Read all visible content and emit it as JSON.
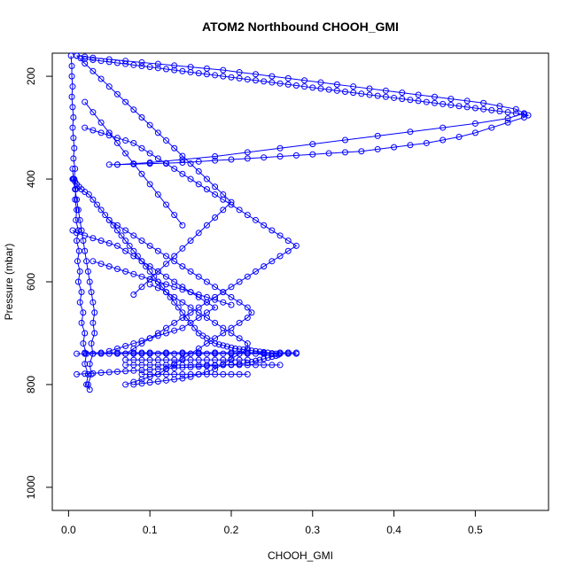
{
  "chart_data": {
    "type": "scatter",
    "title": "ATOM2 Northbound CHOOH_GMI",
    "xlabel": "CHOOH_GMI",
    "ylabel": "Pressure (mbar)",
    "xlim": [
      -0.02,
      0.59
    ],
    "ylim": [
      1045,
      155
    ],
    "y_reversed": true,
    "grid": false,
    "marker": "open-circle",
    "series_color": "#0000ff",
    "x_ticks": [
      0.0,
      0.1,
      0.2,
      0.3,
      0.4,
      0.5
    ],
    "x_tick_labels": [
      "0.0",
      "0.1",
      "0.2",
      "0.3",
      "0.4",
      "0.5"
    ],
    "y_ticks": [
      200,
      400,
      600,
      800,
      1000
    ],
    "y_tick_labels": [
      "200",
      "400",
      "600",
      "800",
      "1000"
    ],
    "series": [
      {
        "x": [
          0.003,
          0.004,
          0.004,
          0.005,
          0.004,
          0.005,
          0.006,
          0.005,
          0.006,
          0.007,
          0.006,
          0.008,
          0.007,
          0.009,
          0.008,
          0.01,
          0.009,
          0.012,
          0.01,
          0.013,
          0.011,
          0.014,
          0.012,
          0.016,
          0.014,
          0.018,
          0.016,
          0.02,
          0.018,
          0.022,
          0.02,
          0.024,
          0.022,
          0.026,
          0.024,
          0.028,
          0.026,
          0.03,
          0.028,
          0.032,
          0.03,
          0.032,
          0.03,
          0.028,
          0.026,
          0.024,
          0.022,
          0.02,
          0.018,
          0.016,
          0.014,
          0.012,
          0.01,
          0.008,
          0.006,
          0.005
        ],
        "y": [
          160,
          180,
          200,
          220,
          240,
          260,
          280,
          300,
          320,
          340,
          360,
          380,
          400,
          420,
          440,
          460,
          480,
          500,
          520,
          540,
          560,
          580,
          600,
          620,
          640,
          660,
          680,
          700,
          720,
          740,
          760,
          780,
          800,
          810,
          800,
          780,
          760,
          740,
          720,
          700,
          680,
          660,
          640,
          620,
          600,
          580,
          560,
          540,
          520,
          500,
          480,
          460,
          440,
          420,
          400,
          380
        ]
      },
      {
        "x": [
          0.015,
          0.02,
          0.03,
          0.04,
          0.05,
          0.06,
          0.07,
          0.08,
          0.09,
          0.1,
          0.11,
          0.12,
          0.13,
          0.14,
          0.15,
          0.16,
          0.17,
          0.18,
          0.19,
          0.2,
          0.21,
          0.22,
          0.23,
          0.24,
          0.25,
          0.26,
          0.27,
          0.28,
          0.29,
          0.3,
          0.31,
          0.32,
          0.33,
          0.34,
          0.35,
          0.36,
          0.37,
          0.38,
          0.39,
          0.4,
          0.41,
          0.42,
          0.43,
          0.44,
          0.45,
          0.46,
          0.47,
          0.48,
          0.49,
          0.5,
          0.51,
          0.52,
          0.53,
          0.54,
          0.55,
          0.56,
          0.565,
          0.56,
          0.54,
          0.52,
          0.5,
          0.48,
          0.46,
          0.44,
          0.42,
          0.4,
          0.38,
          0.36,
          0.34,
          0.32,
          0.3,
          0.28,
          0.26,
          0.24,
          0.22,
          0.2,
          0.18,
          0.16,
          0.14,
          0.12,
          0.1,
          0.08,
          0.06,
          0.05
        ],
        "y": [
          165,
          166,
          168,
          170,
          172,
          174,
          176,
          178,
          180,
          182,
          184,
          186,
          188,
          190,
          192,
          194,
          196,
          198,
          200,
          202,
          204,
          206,
          208,
          210,
          212,
          214,
          216,
          218,
          220,
          222,
          224,
          226,
          228,
          230,
          232,
          234,
          236,
          238,
          240,
          242,
          244,
          246,
          248,
          250,
          252,
          254,
          256,
          258,
          260,
          262,
          264,
          266,
          268,
          270,
          272,
          274,
          276,
          280,
          290,
          300,
          310,
          318,
          324,
          330,
          334,
          338,
          342,
          346,
          348,
          350,
          352,
          354,
          356,
          358,
          360,
          362,
          364,
          366,
          368,
          369,
          370,
          371,
          372,
          372
        ]
      },
      {
        "x": [
          0.01,
          0.02,
          0.03,
          0.05,
          0.07,
          0.09,
          0.11,
          0.13,
          0.15,
          0.17,
          0.19,
          0.21,
          0.23,
          0.25,
          0.27,
          0.29,
          0.31,
          0.33,
          0.35,
          0.37,
          0.39,
          0.41,
          0.43,
          0.45,
          0.47,
          0.49,
          0.51,
          0.53,
          0.55,
          0.56,
          0.54,
          0.5,
          0.46,
          0.42,
          0.38,
          0.34,
          0.3,
          0.26,
          0.22,
          0.18,
          0.14,
          0.1,
          0.06
        ],
        "y": [
          160,
          162,
          164,
          167,
          170,
          173,
          176,
          179,
          182,
          185,
          188,
          192,
          196,
          200,
          204,
          208,
          212,
          216,
          220,
          224,
          228,
          232,
          236,
          240,
          244,
          248,
          252,
          258,
          264,
          272,
          282,
          292,
          300,
          308,
          316,
          324,
          332,
          340,
          348,
          356,
          362,
          368,
          372
        ]
      },
      {
        "x": [
          0.005,
          0.008,
          0.01,
          0.013,
          0.016,
          0.02,
          0.025,
          0.03,
          0.035,
          0.04,
          0.045,
          0.05,
          0.055,
          0.06,
          0.065,
          0.07,
          0.075,
          0.08,
          0.085,
          0.09,
          0.095,
          0.1,
          0.105,
          0.11,
          0.115,
          0.12,
          0.125,
          0.13,
          0.135,
          0.14,
          0.145,
          0.15,
          0.155,
          0.16,
          0.165,
          0.17,
          0.175,
          0.18,
          0.185,
          0.19,
          0.195,
          0.2,
          0.205,
          0.21,
          0.215,
          0.22,
          0.225,
          0.23,
          0.235,
          0.24,
          0.245,
          0.25,
          0.255,
          0.258,
          0.255,
          0.25,
          0.245,
          0.24,
          0.235,
          0.23,
          0.225,
          0.22,
          0.21,
          0.2,
          0.19,
          0.18,
          0.17,
          0.16,
          0.15,
          0.14,
          0.13,
          0.12,
          0.11,
          0.1,
          0.09,
          0.08,
          0.07,
          0.06,
          0.05,
          0.04,
          0.03,
          0.02,
          0.01
        ],
        "y": [
          400,
          405,
          410,
          415,
          420,
          425,
          430,
          440,
          450,
          460,
          470,
          480,
          490,
          500,
          510,
          520,
          530,
          540,
          550,
          560,
          570,
          580,
          590,
          600,
          610,
          620,
          630,
          640,
          650,
          660,
          670,
          680,
          690,
          700,
          705,
          710,
          715,
          720,
          722,
          724,
          726,
          728,
          730,
          731,
          732,
          733,
          734,
          735,
          736,
          737,
          738,
          739,
          740,
          742,
          744,
          746,
          748,
          750,
          752,
          754,
          756,
          758,
          760,
          761,
          762,
          763,
          764,
          765,
          766,
          767,
          768,
          769,
          770,
          771,
          772,
          773,
          774,
          775,
          776,
          777,
          778,
          779,
          780
        ]
      },
      {
        "x": [
          0.09,
          0.1,
          0.12,
          0.14,
          0.16,
          0.18,
          0.2,
          0.22,
          0.24,
          0.26,
          0.27,
          0.28,
          0.27,
          0.26,
          0.24,
          0.22,
          0.2,
          0.18,
          0.16,
          0.14,
          0.12,
          0.1,
          0.08,
          0.06,
          0.04,
          0.02
        ],
        "y": [
          738,
          738,
          738,
          738,
          738,
          738,
          738,
          738,
          738,
          738,
          738,
          738,
          738,
          738,
          738,
          738,
          738,
          738,
          738,
          738,
          738,
          738,
          738,
          738,
          738,
          738
        ]
      },
      {
        "x": [
          0.1,
          0.11,
          0.12,
          0.13,
          0.14,
          0.15,
          0.16,
          0.17,
          0.18,
          0.19,
          0.2,
          0.21,
          0.22,
          0.22,
          0.21,
          0.2,
          0.19,
          0.18,
          0.17,
          0.16,
          0.15,
          0.14,
          0.13,
          0.12,
          0.11,
          0.1,
          0.09,
          0.08
        ],
        "y": [
          605,
          612,
          620,
          630,
          640,
          650,
          660,
          670,
          680,
          690,
          700,
          710,
          720,
          730,
          740,
          750,
          760,
          770,
          775,
          780,
          785,
          788,
          790,
          792,
          794,
          796,
          798,
          800
        ]
      },
      {
        "x": [
          0.05,
          0.06,
          0.07,
          0.08,
          0.09,
          0.1,
          0.11,
          0.12,
          0.13,
          0.14,
          0.15,
          0.16,
          0.17,
          0.18,
          0.19,
          0.2,
          0.21,
          0.22,
          0.225,
          0.22,
          0.21,
          0.2,
          0.19,
          0.18,
          0.17,
          0.16,
          0.15,
          0.14,
          0.13,
          0.12,
          0.11,
          0.1,
          0.09,
          0.08,
          0.07
        ],
        "y": [
          480,
          490,
          500,
          510,
          520,
          530,
          540,
          550,
          560,
          570,
          580,
          590,
          600,
          610,
          620,
          630,
          640,
          650,
          660,
          670,
          680,
          690,
          700,
          710,
          720,
          730,
          740,
          750,
          760,
          770,
          780,
          785,
          790,
          795,
          800
        ]
      },
      {
        "x": [
          0.02,
          0.03,
          0.04,
          0.05,
          0.06,
          0.07,
          0.08,
          0.09,
          0.1,
          0.11,
          0.12,
          0.13,
          0.14,
          0.15,
          0.16,
          0.17,
          0.18,
          0.19,
          0.2,
          0.21,
          0.22,
          0.23,
          0.24,
          0.25,
          0.26,
          0.27,
          0.28,
          0.27,
          0.26,
          0.25,
          0.24,
          0.23,
          0.22,
          0.21,
          0.2,
          0.19,
          0.18,
          0.17,
          0.16,
          0.15,
          0.14,
          0.13,
          0.12,
          0.11,
          0.1,
          0.09,
          0.08,
          0.07
        ],
        "y": [
          300,
          305,
          310,
          315,
          320,
          325,
          330,
          340,
          350,
          360,
          370,
          380,
          390,
          400,
          410,
          420,
          430,
          440,
          450,
          460,
          470,
          480,
          490,
          500,
          510,
          520,
          530,
          540,
          550,
          560,
          570,
          580,
          590,
          600,
          610,
          620,
          630,
          640,
          650,
          660,
          670,
          680,
          690,
          700,
          710,
          720,
          730,
          740
        ]
      },
      {
        "x": [
          0.01,
          0.02,
          0.03,
          0.04,
          0.05,
          0.06,
          0.07,
          0.08,
          0.09,
          0.1,
          0.11,
          0.12,
          0.13,
          0.14,
          0.15,
          0.16,
          0.17,
          0.18,
          0.19,
          0.2,
          0.21,
          0.22,
          0.23,
          0.24,
          0.25,
          0.26,
          0.27,
          0.28
        ],
        "y": [
          740,
          740,
          740,
          740,
          740,
          740,
          740,
          740,
          740,
          740,
          740,
          740,
          740,
          740,
          740,
          740,
          740,
          740,
          740,
          740,
          740,
          740,
          740,
          740,
          740,
          740,
          740,
          740
        ]
      },
      {
        "x": [
          0.07,
          0.08,
          0.09,
          0.1,
          0.11,
          0.12,
          0.13,
          0.14,
          0.15,
          0.16,
          0.17,
          0.18,
          0.19,
          0.2,
          0.21,
          0.22
        ],
        "y": [
          752,
          752,
          752,
          752,
          752,
          752,
          752,
          752,
          752,
          752,
          752,
          752,
          752,
          752,
          752,
          752
        ]
      },
      {
        "x": [
          0.07,
          0.08,
          0.09,
          0.1,
          0.11,
          0.12,
          0.13,
          0.14,
          0.15,
          0.16,
          0.17,
          0.18,
          0.19,
          0.2,
          0.21,
          0.22,
          0.23,
          0.24,
          0.25,
          0.26
        ],
        "y": [
          762,
          762,
          762,
          762,
          762,
          762,
          762,
          762,
          762,
          762,
          762,
          762,
          762,
          762,
          762,
          762,
          762,
          762,
          762,
          762
        ]
      },
      {
        "x": [
          0.09,
          0.1,
          0.11,
          0.12,
          0.13,
          0.14,
          0.15,
          0.16,
          0.17,
          0.18,
          0.19,
          0.2,
          0.21,
          0.22
        ],
        "y": [
          780,
          780,
          780,
          780,
          780,
          780,
          780,
          780,
          780,
          780,
          780,
          780,
          780,
          780
        ]
      },
      {
        "x": [
          0.01,
          0.02,
          0.03,
          0.04,
          0.05,
          0.06,
          0.07,
          0.08,
          0.09,
          0.1,
          0.11,
          0.12,
          0.13,
          0.14,
          0.15,
          0.16,
          0.17,
          0.18,
          0.19,
          0.2,
          0.19,
          0.18,
          0.17,
          0.16,
          0.15,
          0.14,
          0.13,
          0.12,
          0.11,
          0.1,
          0.09,
          0.08
        ],
        "y": [
          160,
          175,
          190,
          205,
          220,
          235,
          250,
          265,
          280,
          295,
          310,
          325,
          340,
          355,
          370,
          385,
          400,
          415,
          430,
          445,
          460,
          475,
          490,
          505,
          520,
          535,
          550,
          565,
          580,
          595,
          610,
          625
        ]
      },
      {
        "x": [
          0.005,
          0.01,
          0.02,
          0.03,
          0.04,
          0.05,
          0.06,
          0.07,
          0.08,
          0.09,
          0.1,
          0.11,
          0.12,
          0.13,
          0.14,
          0.15,
          0.16,
          0.17,
          0.18,
          0.17,
          0.16,
          0.15,
          0.14,
          0.13,
          0.12,
          0.11,
          0.1,
          0.09,
          0.08,
          0.07,
          0.06,
          0.05
        ],
        "y": [
          500,
          505,
          510,
          515,
          520,
          525,
          530,
          540,
          550,
          560,
          570,
          580,
          590,
          600,
          610,
          620,
          630,
          640,
          650,
          660,
          670,
          680,
          690,
          695,
          700,
          705,
          710,
          715,
          720,
          725,
          730,
          735
        ]
      },
      {
        "x": [
          0.03,
          0.04,
          0.05,
          0.06,
          0.07,
          0.08,
          0.09,
          0.1,
          0.11,
          0.12,
          0.13,
          0.14,
          0.15,
          0.16,
          0.17,
          0.18,
          0.19,
          0.2
        ],
        "y": [
          560,
          565,
          570,
          575,
          580,
          585,
          590,
          595,
          600,
          605,
          610,
          615,
          620,
          625,
          630,
          635,
          640,
          645
        ]
      },
      {
        "x": [
          0.02,
          0.03,
          0.04,
          0.05,
          0.06,
          0.07,
          0.08,
          0.09,
          0.1,
          0.11,
          0.12,
          0.13,
          0.14
        ],
        "y": [
          250,
          270,
          290,
          310,
          330,
          350,
          370,
          390,
          410,
          430,
          450,
          470,
          490
        ]
      }
    ]
  }
}
